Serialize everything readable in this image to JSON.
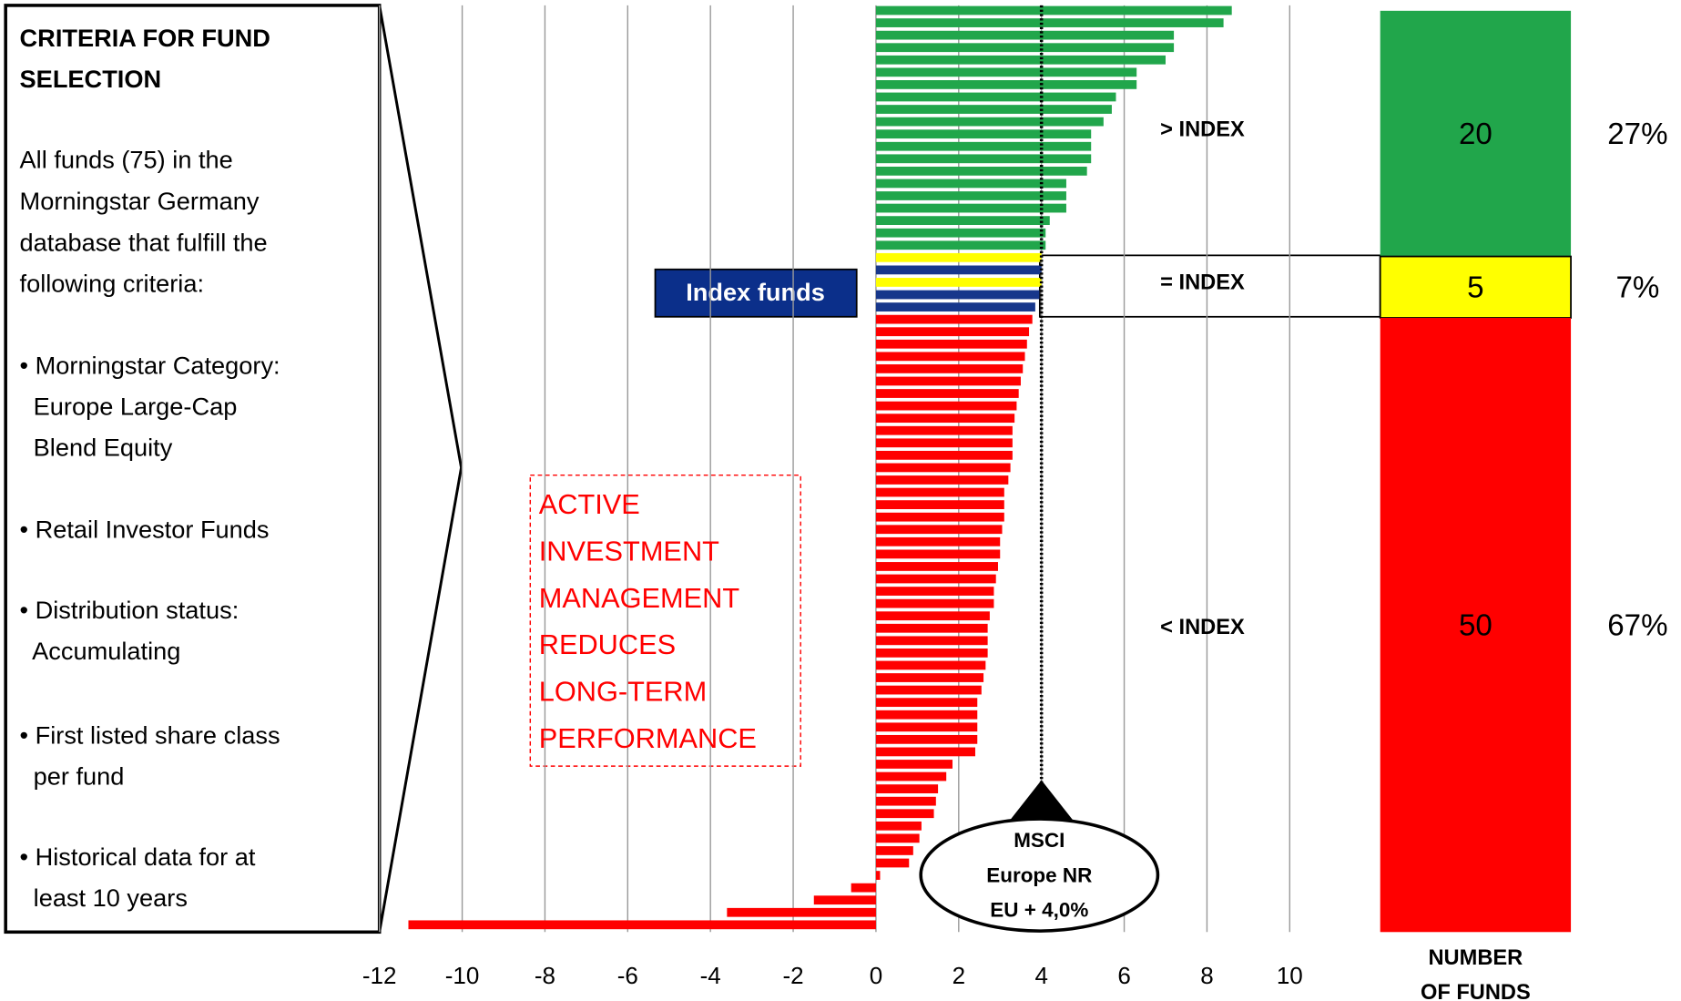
{
  "chart_data": [
    {
      "type": "bar",
      "orientation": "horizontal",
      "values": [
        8.6,
        8.4,
        7.2,
        7.2,
        7.0,
        6.3,
        6.3,
        5.8,
        5.7,
        5.5,
        5.2,
        5.2,
        5.2,
        5.1,
        4.6,
        4.6,
        4.6,
        4.2,
        4.1,
        4.1,
        4.0,
        4.0,
        4.0,
        3.95,
        3.85,
        3.78,
        3.7,
        3.65,
        3.6,
        3.55,
        3.5,
        3.45,
        3.4,
        3.35,
        3.3,
        3.3,
        3.3,
        3.25,
        3.2,
        3.1,
        3.1,
        3.1,
        3.05,
        3.0,
        3.0,
        2.95,
        2.9,
        2.85,
        2.85,
        2.75,
        2.7,
        2.7,
        2.7,
        2.65,
        2.6,
        2.55,
        2.45,
        2.45,
        2.45,
        2.45,
        2.4,
        1.85,
        1.7,
        1.5,
        1.45,
        1.4,
        1.1,
        1.05,
        0.9,
        0.8,
        0.1,
        -0.6,
        -1.5,
        -3.6,
        -11.3
      ],
      "colors": [
        "#21a64b",
        "#21a64b",
        "#21a64b",
        "#21a64b",
        "#21a64b",
        "#21a64b",
        "#21a64b",
        "#21a64b",
        "#21a64b",
        "#21a64b",
        "#21a64b",
        "#21a64b",
        "#21a64b",
        "#21a64b",
        "#21a64b",
        "#21a64b",
        "#21a64b",
        "#21a64b",
        "#21a64b",
        "#21a64b",
        "#ffff00",
        "#17378b",
        "#ffff00",
        "#17378b",
        "#17378b",
        "#ff0000",
        "#ff0000",
        "#ff0000",
        "#ff0000",
        "#ff0000",
        "#ff0000",
        "#ff0000",
        "#ff0000",
        "#ff0000",
        "#ff0000",
        "#ff0000",
        "#ff0000",
        "#ff0000",
        "#ff0000",
        "#ff0000",
        "#ff0000",
        "#ff0000",
        "#ff0000",
        "#ff0000",
        "#ff0000",
        "#ff0000",
        "#ff0000",
        "#ff0000",
        "#ff0000",
        "#ff0000",
        "#ff0000",
        "#ff0000",
        "#ff0000",
        "#ff0000",
        "#ff0000",
        "#ff0000",
        "#ff0000",
        "#ff0000",
        "#ff0000",
        "#ff0000",
        "#ff0000",
        "#ff0000",
        "#ff0000",
        "#ff0000",
        "#ff0000",
        "#ff0000",
        "#ff0000",
        "#ff0000",
        "#ff0000",
        "#ff0000",
        "#ff0000",
        "#ff0000",
        "#ff0000",
        "#ff0000",
        "#ff0000",
        "#ff0000"
      ],
      "xlim": [
        -12,
        10
      ],
      "xticks": [
        -12,
        -10,
        -8,
        -6,
        -4,
        -2,
        0,
        2,
        4,
        6,
        8,
        10
      ],
      "grid": true,
      "reference_value": 4,
      "annotations": {
        "index_funds": "Index funds",
        "active": [
          "ACTIVE",
          "INVESTMENT",
          "MANAGEMENT",
          "REDUCES",
          "LONG-TERM",
          "PERFORMANCE"
        ],
        "benchmark": [
          "MSCI",
          "Europe NR",
          "EU + 4,0%"
        ]
      }
    },
    {
      "type": "stacked_bar",
      "categories": [
        "> INDEX",
        "= INDEX",
        "< INDEX"
      ],
      "values": [
        20,
        5,
        50
      ],
      "colors": [
        "#21a64b",
        "#ffff00",
        "#ff0000"
      ],
      "share_labels": [
        "27%",
        "7%",
        "67%"
      ],
      "axis_label": [
        "NUMBER",
        "OF FUNDS"
      ]
    }
  ],
  "criteria": {
    "title": [
      "CRITERIA FOR FUND",
      "SELECTION"
    ],
    "intro": [
      "All funds (75) in the",
      "Morningstar Germany",
      "database that fulfill the",
      "following criteria:"
    ],
    "bullets": [
      [
        "• Morningstar Category:",
        "  Europe Large-Cap",
        "  Blend Equity"
      ],
      [
        "• Retail Investor Funds"
      ],
      [
        "• Distribution status:",
        "  Accumulating"
      ],
      [
        "• First listed share class",
        "  per fund"
      ],
      [
        "• Historical data for at",
        "  least 10 years"
      ]
    ]
  }
}
